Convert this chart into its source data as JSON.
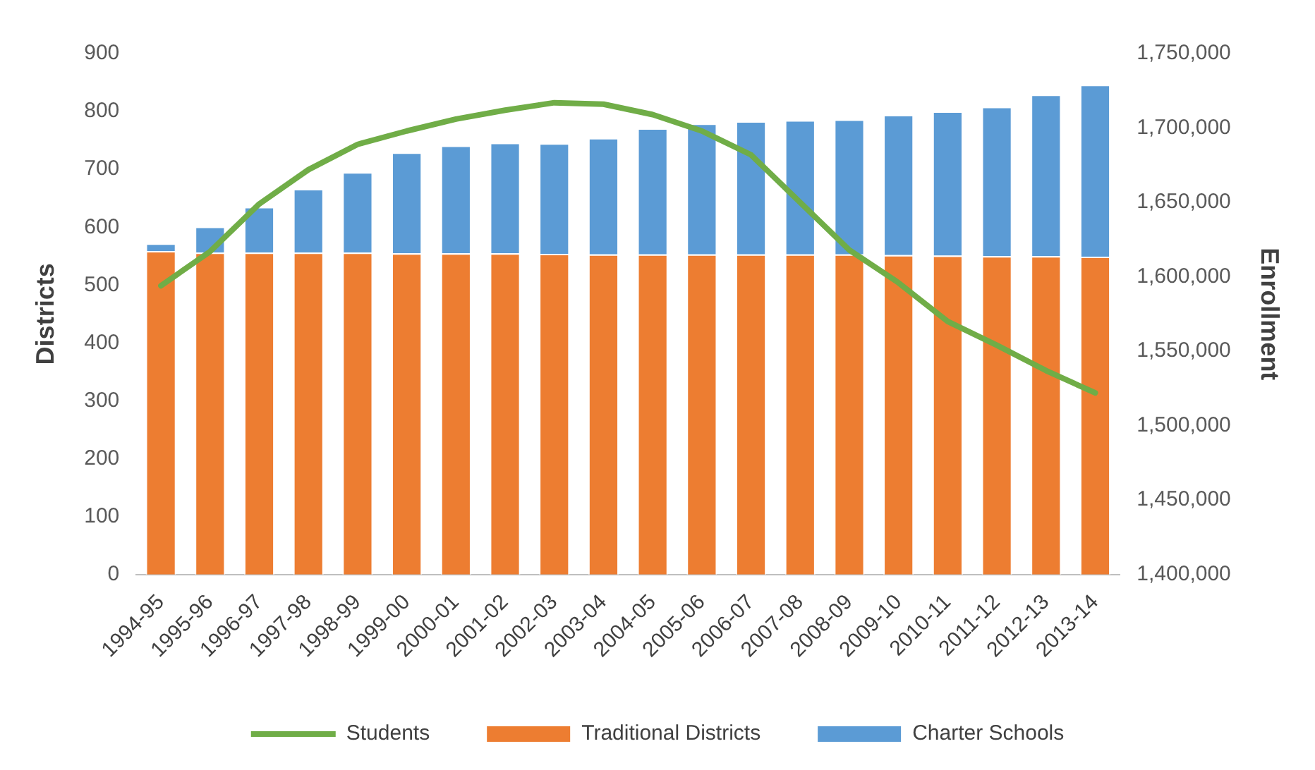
{
  "chart_data": {
    "type": "bar",
    "stacked": true,
    "ylabel": "Districts",
    "y2label": "Enrollment",
    "categories": [
      "1994-95",
      "1995-96",
      "1996-97",
      "1997-98",
      "1998-99",
      "1999-00",
      "2000-01",
      "2001-02",
      "2002-03",
      "2003-04",
      "2004-05",
      "2005-06",
      "2006-07",
      "2007-08",
      "2008-09",
      "2009-10",
      "2010-11",
      "2011-12",
      "2012-13",
      "2013-14"
    ],
    "series": [
      {
        "name": "Traditional Districts",
        "color": "#ed7d31",
        "values": [
          559,
          556,
          556,
          556,
          556,
          555,
          555,
          555,
          554,
          553,
          553,
          553,
          553,
          553,
          553,
          552,
          551,
          550,
          550,
          549
        ]
      },
      {
        "name": "Charter Schools",
        "color": "#5b9bd5",
        "values": [
          13,
          45,
          79,
          110,
          139,
          174,
          186,
          191,
          191,
          201,
          218,
          226,
          230,
          232,
          233,
          242,
          249,
          258,
          279,
          297
        ]
      },
      {
        "name": "Students",
        "type": "line",
        "axis": "y2",
        "color": "#70ad47",
        "values": [
          1594000,
          1617000,
          1649000,
          1672000,
          1689000,
          1698000,
          1706000,
          1712000,
          1717000,
          1716000,
          1709000,
          1698000,
          1682000,
          1650000,
          1618000,
          1596000,
          1570000,
          1554000,
          1537000,
          1522000
        ]
      }
    ],
    "ylim": [
      0,
      900
    ],
    "yticks": [
      0,
      100,
      200,
      300,
      400,
      500,
      600,
      700,
      800,
      900
    ],
    "y2lim": [
      1400000,
      1750000
    ],
    "y2ticks": [
      {
        "value": 1400000,
        "label": "1,400,000"
      },
      {
        "value": 1450000,
        "label": "1,450,000"
      },
      {
        "value": 1500000,
        "label": "1,500,000"
      },
      {
        "value": 1550000,
        "label": "1,550,000"
      },
      {
        "value": 1600000,
        "label": "1,600,000"
      },
      {
        "value": 1650000,
        "label": "1,650,000"
      },
      {
        "value": 1700000,
        "label": "1,700,000"
      },
      {
        "value": 1750000,
        "label": "1,750,000"
      }
    ],
    "grid": false,
    "legend": "bottom",
    "marker": "none",
    "line_style": "solid"
  }
}
